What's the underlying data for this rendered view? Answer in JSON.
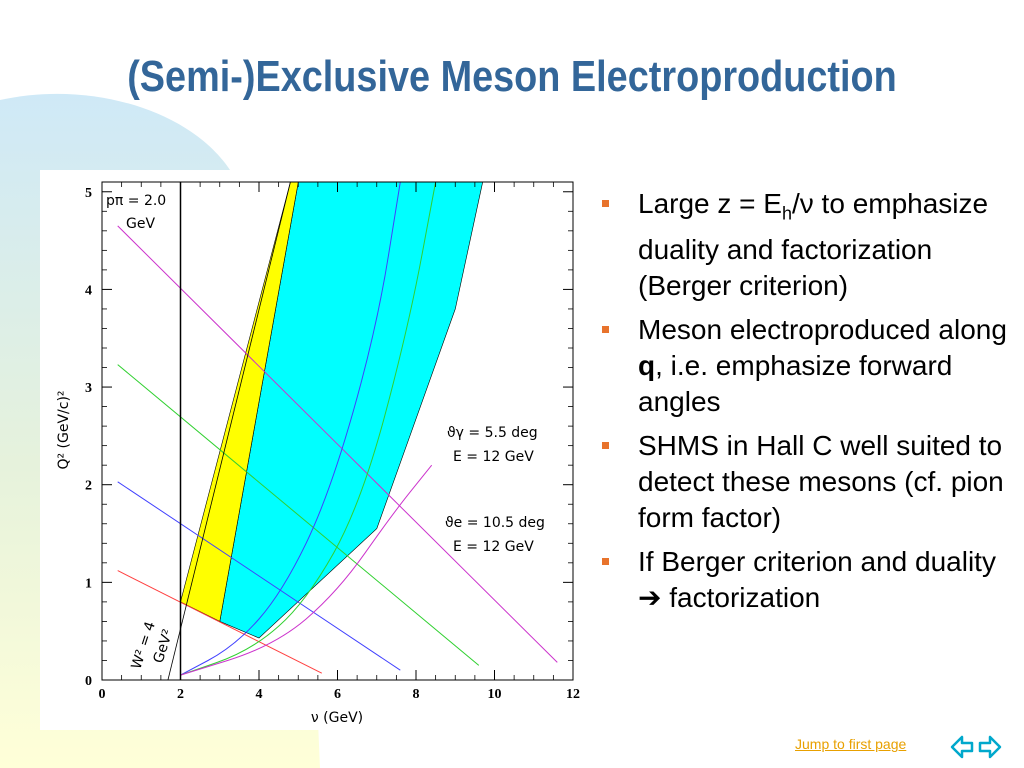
{
  "slide": {
    "title": "(Semi-)Exclusive Meson Electroproduction",
    "colors": {
      "title": "#336699",
      "bullet_marker": "#e8732c",
      "link": "#e8a000",
      "nav_arrow": "#00a8cc"
    }
  },
  "bullets": [
    {
      "pre": "Large z = E",
      "sub": "h",
      "post": "/ν to emphasize duality and factorization (Berger criterion)"
    },
    {
      "pre": "Meson electroproduced along ",
      "bold": "q",
      "post": ", i.e. emphasize forward angles"
    },
    {
      "text": "SHMS in Hall C well suited to detect these mesons (cf. pion form factor)"
    },
    {
      "pre": "If Berger criterion and duality ",
      "arrow": "➔",
      "post": " factorization"
    }
  ],
  "footer": {
    "jump_link": "Jump to first page",
    "nav_icon": "double-arrow-icon"
  },
  "chart_data": {
    "type": "line",
    "xlabel": "ν (GeV)",
    "ylabel": "Q² (GeV/c)²",
    "xlim": [
      0,
      12
    ],
    "ylim": [
      0,
      5.1
    ],
    "xticks": [
      "0",
      "2",
      "4",
      "6",
      "8",
      "10",
      "12"
    ],
    "yticks": [
      "0",
      "1",
      "2",
      "3",
      "4",
      "5"
    ],
    "annotations": {
      "p_pi_line1": "pπ = 2.0",
      "p_pi_line2": "GeV",
      "w2_line1": "W² = 4",
      "w2_line2": "GeV²",
      "theta_gamma_line1": "ϑγ = 5.5 deg",
      "theta_gamma_line2": "E = 12 GeV",
      "theta_e_line1": "ϑe = 10.5 deg",
      "theta_e_line2": "E = 12 GeV"
    },
    "p_pi_nu": 2.0,
    "w2_line": {
      "x": [
        1.68,
        4.8
      ],
      "y": [
        0,
        5.1
      ],
      "color": "#000000"
    },
    "yellow_band": {
      "left": {
        "x": [
          2.0,
          4.8
        ],
        "y": [
          0.8,
          5.1
        ]
      },
      "right": {
        "x": [
          3.0,
          5.0
        ],
        "y": [
          0.6,
          5.1
        ]
      },
      "color": "#ffff00"
    },
    "cyan_band": {
      "left": {
        "x": [
          3.0,
          5.0
        ],
        "y": [
          0.6,
          5.1
        ]
      },
      "right": {
        "x": [
          4.0,
          7.0,
          9.0,
          9.7
        ],
        "y": [
          0.43,
          1.55,
          3.8,
          5.1
        ]
      },
      "color": "#00ffff"
    },
    "series": [
      {
        "color": "#ff4040",
        "x": [
          0.4,
          5.6
        ],
        "y": [
          1.12,
          0.07
        ]
      },
      {
        "color": "#4040ff",
        "x": [
          0.4,
          7.6
        ],
        "y": [
          2.03,
          0.1
        ]
      },
      {
        "color": "#30d030",
        "x": [
          0.4,
          9.6
        ],
        "y": [
          3.23,
          0.15
        ]
      },
      {
        "color": "#cc33cc",
        "x": [
          0.4,
          11.6
        ],
        "y": [
          4.65,
          0.18
        ]
      },
      {
        "color": "#4040ff",
        "x": [
          2.0,
          3.4,
          4.6,
          5.8,
          7.0,
          7.6
        ],
        "y": [
          0.05,
          0.35,
          0.9,
          1.9,
          3.6,
          5.1
        ]
      },
      {
        "color": "#30d030",
        "x": [
          2.0,
          3.8,
          5.2,
          6.6,
          7.8,
          8.5
        ],
        "y": [
          0.05,
          0.3,
          0.8,
          1.8,
          3.6,
          5.1
        ]
      },
      {
        "color": "#cc33cc",
        "x": [
          2.0,
          4.4,
          6.0,
          7.4,
          8.4
        ],
        "y": [
          0.05,
          0.35,
          0.9,
          1.7,
          2.2
        ]
      }
    ]
  }
}
